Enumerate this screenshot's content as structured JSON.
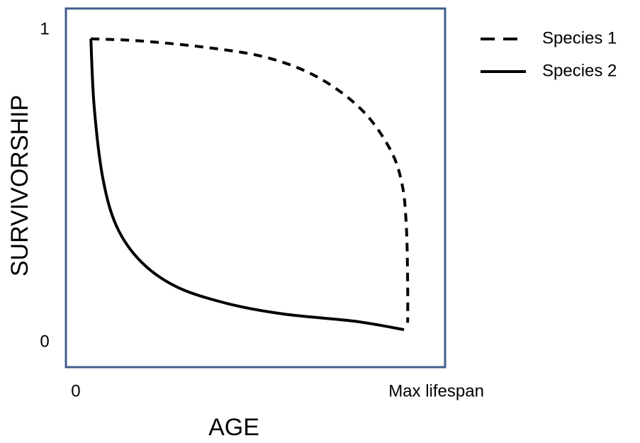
{
  "chart_data": {
    "type": "line",
    "xlabel": "AGE",
    "ylabel": "SURVIVORSHIP",
    "xlim": [
      -0.041,
      1.114
    ],
    "ylim": [
      -0.079,
      1.068
    ],
    "xticks": [
      0,
      {
        "value": 1,
        "label": "Max lifespan"
      }
    ],
    "yticks": [
      0,
      1
    ],
    "legend": "outside upper right",
    "series": [
      {
        "name": "Species 1",
        "color": "#000000",
        "dash": true,
        "x": [
          0.035,
          0.19,
          0.406,
          0.579,
          0.73,
          0.86,
          0.946,
          0.983,
          0.996,
          1.0,
          1.0
        ],
        "values": [
          0.971,
          0.964,
          0.941,
          0.909,
          0.846,
          0.744,
          0.619,
          0.506,
          0.37,
          0.188,
          0.063
        ]
      },
      {
        "name": "Species 2",
        "color": "#000000",
        "dash": false,
        "x": [
          0.035,
          0.045,
          0.071,
          0.114,
          0.19,
          0.298,
          0.449,
          0.622,
          0.838,
          0.989
        ],
        "values": [
          0.971,
          0.755,
          0.528,
          0.37,
          0.256,
          0.177,
          0.125,
          0.091,
          0.068,
          0.041
        ]
      }
    ]
  }
}
